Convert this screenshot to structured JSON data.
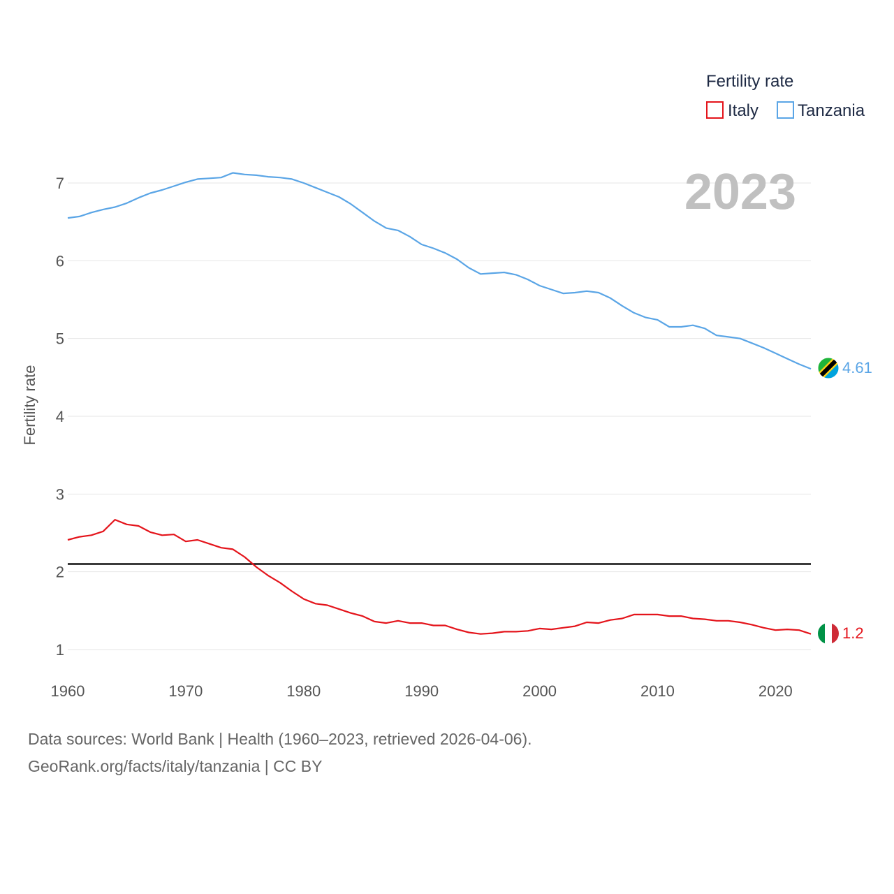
{
  "chart_data": {
    "type": "line",
    "ylabel": "Fertility rate",
    "xlabel": "",
    "legend_title": "Fertility rate",
    "legend_position": "top-right",
    "current_year": "2023",
    "xlim": [
      1960,
      2023
    ],
    "ylim": [
      0.7,
      7.5
    ],
    "x_ticks": [
      1960,
      1970,
      1980,
      1990,
      2000,
      2010,
      2020
    ],
    "y_ticks": [
      1,
      2,
      3,
      4,
      5,
      6,
      7
    ],
    "reference_line": 2.1,
    "grid": true,
    "x": [
      1960,
      1961,
      1962,
      1963,
      1964,
      1965,
      1966,
      1967,
      1968,
      1969,
      1970,
      1971,
      1972,
      1973,
      1974,
      1975,
      1976,
      1977,
      1978,
      1979,
      1980,
      1981,
      1982,
      1983,
      1984,
      1985,
      1986,
      1987,
      1988,
      1989,
      1990,
      1991,
      1992,
      1993,
      1994,
      1995,
      1996,
      1997,
      1998,
      1999,
      2000,
      2001,
      2002,
      2003,
      2004,
      2005,
      2006,
      2007,
      2008,
      2009,
      2010,
      2011,
      2012,
      2013,
      2014,
      2015,
      2016,
      2017,
      2018,
      2019,
      2020,
      2021,
      2022,
      2023
    ],
    "series": [
      {
        "name": "Italy",
        "color": "#e4141b",
        "end_label": "1.2",
        "values": [
          2.41,
          2.45,
          2.47,
          2.52,
          2.67,
          2.61,
          2.59,
          2.51,
          2.47,
          2.48,
          2.39,
          2.41,
          2.36,
          2.31,
          2.29,
          2.19,
          2.06,
          1.95,
          1.86,
          1.75,
          1.65,
          1.59,
          1.57,
          1.52,
          1.47,
          1.43,
          1.36,
          1.34,
          1.37,
          1.34,
          1.34,
          1.31,
          1.31,
          1.26,
          1.22,
          1.2,
          1.21,
          1.23,
          1.23,
          1.24,
          1.27,
          1.26,
          1.28,
          1.3,
          1.35,
          1.34,
          1.38,
          1.4,
          1.45,
          1.45,
          1.45,
          1.43,
          1.43,
          1.4,
          1.39,
          1.37,
          1.37,
          1.35,
          1.32,
          1.28,
          1.25,
          1.26,
          1.25,
          1.2
        ]
      },
      {
        "name": "Tanzania",
        "color": "#5aa5e6",
        "end_label": "4.61",
        "values": [
          6.55,
          6.57,
          6.62,
          6.66,
          6.69,
          6.74,
          6.81,
          6.87,
          6.91,
          6.96,
          7.01,
          7.05,
          7.06,
          7.07,
          7.13,
          7.11,
          7.1,
          7.08,
          7.07,
          7.05,
          7.0,
          6.94,
          6.88,
          6.82,
          6.73,
          6.62,
          6.51,
          6.42,
          6.39,
          6.31,
          6.21,
          6.16,
          6.1,
          6.02,
          5.91,
          5.83,
          5.84,
          5.85,
          5.82,
          5.76,
          5.68,
          5.63,
          5.58,
          5.59,
          5.61,
          5.59,
          5.52,
          5.42,
          5.33,
          5.27,
          5.24,
          5.15,
          5.15,
          5.17,
          5.13,
          5.04,
          5.02,
          5.0,
          4.94,
          4.88,
          4.81,
          4.74,
          4.67,
          4.61
        ]
      }
    ]
  },
  "footer": {
    "line1": "Data sources: World Bank | Health (1960–2023, retrieved 2026-04-06).",
    "line2": "GeoRank.org/facts/italy/tanzania | CC BY"
  }
}
